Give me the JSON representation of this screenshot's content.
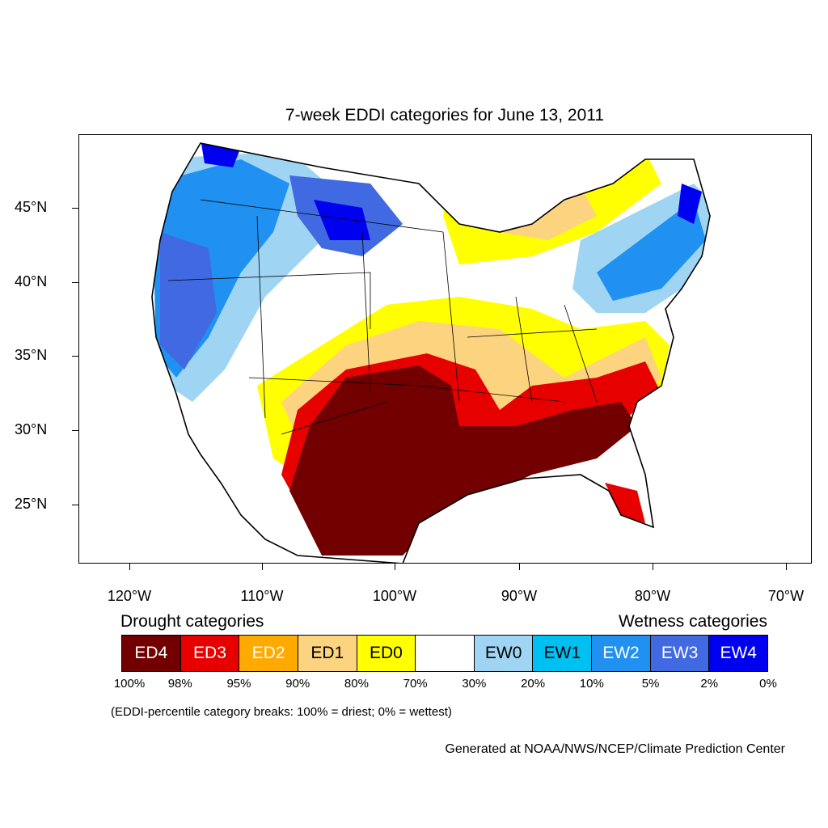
{
  "title": "7-week EDDI categories for June 13, 2011",
  "lon_labels": [
    "120°W",
    "110°W",
    "100°W",
    "90°W",
    "80°W",
    "70°W"
  ],
  "lat_labels": [
    "45°N",
    "40°N",
    "35°N",
    "30°N",
    "25°N"
  ],
  "legend": {
    "drought_heading": "Drought categories",
    "wetness_heading": "Wetness categories",
    "categories": [
      {
        "label": "ED4",
        "color": "#730000",
        "text_color": "#ffffff"
      },
      {
        "label": "ED3",
        "color": "#e60000",
        "text_color": "#ffffff"
      },
      {
        "label": "ED2",
        "color": "#ffaa00",
        "text_color": "#ffffff"
      },
      {
        "label": "ED1",
        "color": "#fcd37f",
        "text_color": "#000000"
      },
      {
        "label": "ED0",
        "color": "#ffff00",
        "text_color": "#000000"
      },
      {
        "label": "",
        "color": "#ffffff",
        "text_color": "#000000"
      },
      {
        "label": "EW0",
        "color": "#9fd5f2",
        "text_color": "#000000"
      },
      {
        "label": "EW1",
        "color": "#00c0f2",
        "text_color": "#000000"
      },
      {
        "label": "EW2",
        "color": "#2091f0",
        "text_color": "#ffffff"
      },
      {
        "label": "EW3",
        "color": "#4169e1",
        "text_color": "#ffffff"
      },
      {
        "label": "EW4",
        "color": "#0000f0",
        "text_color": "#ffffff"
      }
    ],
    "breaks": [
      "100%",
      "98%",
      "95%",
      "90%",
      "80%",
      "70%",
      "30%",
      "20%",
      "10%",
      "5%",
      "2%",
      "0%"
    ]
  },
  "breaks_note": "(EDDI-percentile category breaks: 100% = driest; 0% = wettest)",
  "credit": "Generated at NOAA/NWS/NCEP/Climate Prediction Center"
}
